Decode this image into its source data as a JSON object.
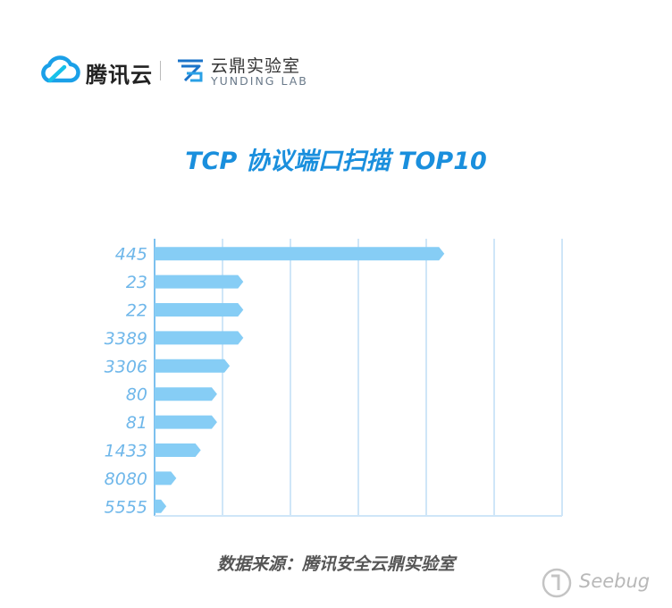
{
  "header": {
    "brand_name": "腾讯云",
    "lab_name_cn": "云鼎实验室",
    "lab_name_en": "YUNDING LAB"
  },
  "source_text": "数据来源：腾讯安全云鼎实验室",
  "watermark": {
    "text": "Seebug"
  },
  "colors": {
    "title": "#1a8fdd",
    "bar": "#86cdf5",
    "grid": "#cfe6f8",
    "axis": "#7cc0ee"
  },
  "chart_data": {
    "type": "bar",
    "orientation": "horizontal",
    "title": "TCP 协议端口扫描 TOP10",
    "categories": [
      "445",
      "23",
      "22",
      "3389",
      "3306",
      "80",
      "81",
      "1433",
      "8080",
      "5555"
    ],
    "values": [
      320,
      98,
      98,
      98,
      83,
      69,
      69,
      51,
      24,
      13
    ],
    "xlim": [
      0,
      450
    ],
    "grid": true,
    "xlabel": "",
    "ylabel": ""
  }
}
